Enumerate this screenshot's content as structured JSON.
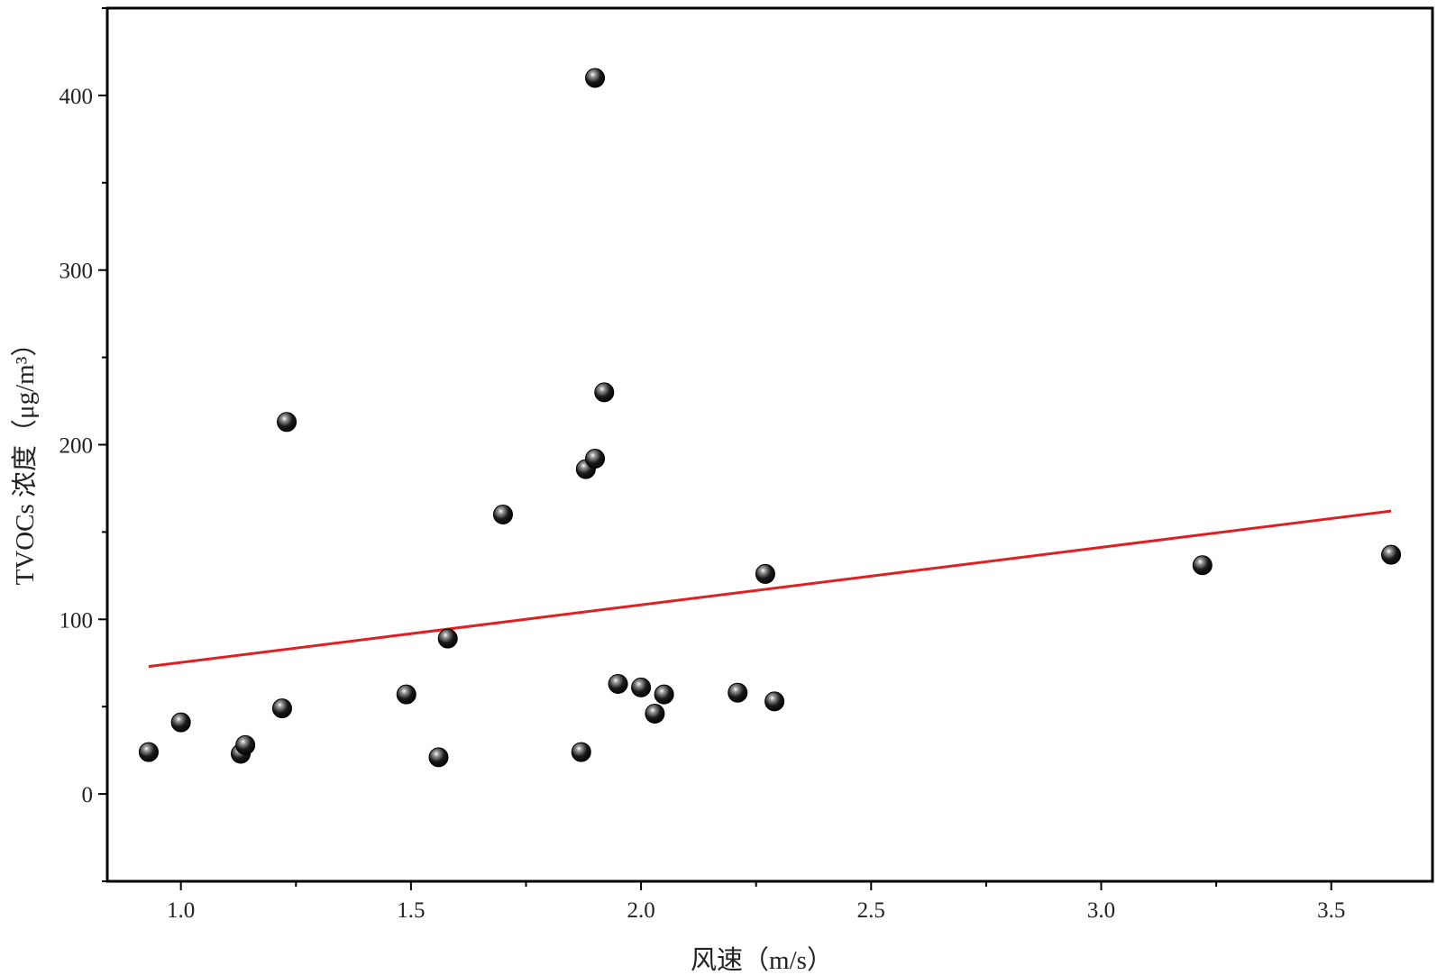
{
  "chart_data": {
    "type": "scatter",
    "xlabel": "风速（m/s）",
    "ylabel": "TVOCs 浓度（μg/m³）",
    "xlim": [
      0.84,
      3.72
    ],
    "ylim": [
      -50,
      450
    ],
    "x_ticks": [
      1.0,
      1.5,
      2.0,
      2.5,
      3.0,
      3.5
    ],
    "x_tick_labels": [
      "1.0",
      "1.5",
      "2.0",
      "2.5",
      "3.0",
      "3.5"
    ],
    "y_ticks": [
      0,
      100,
      200,
      300,
      400
    ],
    "y_tick_labels": [
      "0",
      "100",
      "200",
      "300",
      "400"
    ],
    "grid": false,
    "legend": "none",
    "series": [
      {
        "type": "scatter",
        "color": "#111111",
        "points": [
          {
            "x": 0.93,
            "y": 24
          },
          {
            "x": 1.0,
            "y": 41
          },
          {
            "x": 1.13,
            "y": 23
          },
          {
            "x": 1.14,
            "y": 28
          },
          {
            "x": 1.22,
            "y": 49
          },
          {
            "x": 1.23,
            "y": 213
          },
          {
            "x": 1.49,
            "y": 57
          },
          {
            "x": 1.56,
            "y": 21
          },
          {
            "x": 1.58,
            "y": 89
          },
          {
            "x": 1.7,
            "y": 160
          },
          {
            "x": 1.87,
            "y": 24
          },
          {
            "x": 1.88,
            "y": 186
          },
          {
            "x": 1.9,
            "y": 192
          },
          {
            "x": 1.9,
            "y": 410
          },
          {
            "x": 1.92,
            "y": 230
          },
          {
            "x": 1.95,
            "y": 63
          },
          {
            "x": 2.0,
            "y": 61
          },
          {
            "x": 2.03,
            "y": 46
          },
          {
            "x": 2.05,
            "y": 57
          },
          {
            "x": 2.21,
            "y": 58
          },
          {
            "x": 2.27,
            "y": 126
          },
          {
            "x": 2.29,
            "y": 53
          },
          {
            "x": 3.22,
            "y": 131
          },
          {
            "x": 3.63,
            "y": 137
          }
        ]
      },
      {
        "type": "line",
        "role": "linear-fit",
        "color": "#e02020",
        "points": [
          {
            "x": 0.93,
            "y": 73
          },
          {
            "x": 3.63,
            "y": 162
          }
        ]
      }
    ]
  }
}
